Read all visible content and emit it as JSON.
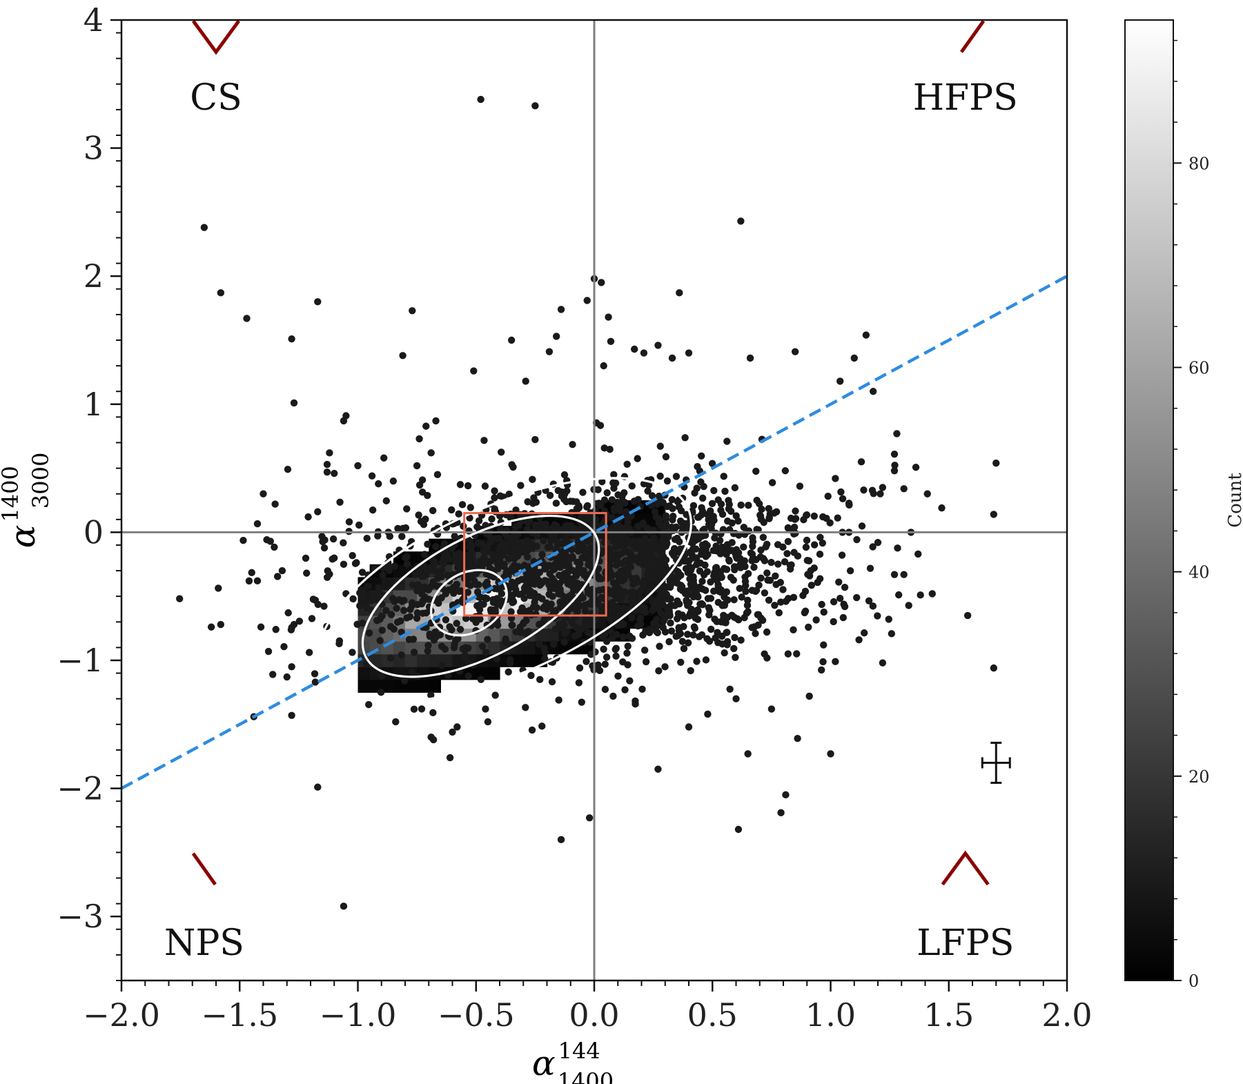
{
  "chart_data": {
    "type": "scatter",
    "x_axis": {
      "label_base": "α",
      "label_sub": "1400",
      "label_sup": "144",
      "range": [
        -2.0,
        2.0
      ],
      "ticks": [
        -2.0,
        -1.5,
        -1.0,
        -0.5,
        0.0,
        0.5,
        1.0,
        1.5,
        2.0
      ],
      "tick_labels": [
        "−2.0",
        "−1.5",
        "−1.0",
        "−0.5",
        "0.0",
        "0.5",
        "1.0",
        "1.5",
        "2.0"
      ]
    },
    "y_axis": {
      "label_base": "α",
      "label_sub": "3000",
      "label_sup": "1400",
      "range": [
        -3.5,
        4.0
      ],
      "ticks": [
        -3,
        -2,
        -1,
        0,
        1,
        2,
        3,
        4
      ],
      "tick_labels": [
        "−3",
        "−2",
        "−1",
        "0",
        "1",
        "2",
        "3",
        "4"
      ]
    },
    "colorbar": {
      "label": "Count",
      "range": [
        0,
        94
      ],
      "ticks": [
        0,
        20,
        40,
        60,
        80
      ],
      "tick_labels": [
        "0",
        "20",
        "40",
        "60",
        "80"
      ],
      "colormap": "greys_reversed"
    },
    "quadrant_labels": [
      {
        "text": "CS",
        "x": -1.6,
        "y": 3.3,
        "shape": "V",
        "sx": -1.6,
        "sy": 3.75
      },
      {
        "text": "HFPS",
        "x": 1.57,
        "y": 3.3,
        "shape": "rising",
        "sx": 1.6,
        "sy": 3.75
      },
      {
        "text": "NPS",
        "x": -1.65,
        "y": -3.3,
        "shape": "falling",
        "sx": -1.65,
        "sy": -2.75
      },
      {
        "text": "LFPS",
        "x": 1.57,
        "y": -3.3,
        "shape": "caret",
        "sx": 1.57,
        "sy": -2.75
      }
    ],
    "reference_lines": {
      "vertical_x": 0.0,
      "horizontal_y": 0.0
    },
    "fit_line": {
      "x": [
        -2.0,
        2.0
      ],
      "y": [
        -2.0,
        2.0
      ],
      "style": "dashed"
    },
    "box": {
      "x": [
        -0.55,
        0.05
      ],
      "y": [
        -0.65,
        0.15
      ]
    },
    "density": {
      "center": [
        -0.45,
        -0.55
      ],
      "sigma_major": 0.42,
      "sigma_minor": 0.19,
      "angle_deg": 32,
      "max_count": 94
    },
    "contours": [
      {
        "cx": -0.53,
        "cy": -0.55,
        "rx": 0.17,
        "ry": 0.16,
        "angle_deg": 30
      },
      {
        "cx": -0.48,
        "cy": -0.5,
        "rx": 0.55,
        "ry": 0.32,
        "angle_deg": 28
      },
      {
        "cx": -0.38,
        "cy": -0.45,
        "rx": 0.85,
        "ry": 0.45,
        "angle_deg": 24
      }
    ],
    "points": [
      [
        -0.48,
        3.38
      ],
      [
        -0.25,
        3.33
      ],
      [
        -1.65,
        2.38
      ],
      [
        -1.58,
        1.87
      ],
      [
        -1.47,
        1.67
      ],
      [
        -1.28,
        1.51
      ],
      [
        -1.17,
        1.8
      ],
      [
        -1.27,
        1.01
      ],
      [
        -0.81,
        1.38
      ],
      [
        -0.77,
        1.73
      ],
      [
        -0.35,
        1.5
      ],
      [
        -0.29,
        1.18
      ],
      [
        -0.51,
        1.26
      ],
      [
        -0.14,
        1.74
      ],
      [
        -0.19,
        1.41
      ],
      [
        -0.16,
        1.53
      ],
      [
        0.0,
        1.98
      ],
      [
        0.03,
        1.95
      ],
      [
        -0.03,
        1.81
      ],
      [
        0.06,
        1.68
      ],
      [
        0.36,
        1.87
      ],
      [
        0.62,
        2.43
      ],
      [
        0.07,
        1.49
      ],
      [
        0.27,
        1.46
      ],
      [
        0.17,
        1.43
      ],
      [
        0.33,
        1.36
      ],
      [
        0.04,
        1.3
      ],
      [
        0.21,
        1.4
      ],
      [
        0.4,
        1.4
      ],
      [
        0.66,
        1.36
      ],
      [
        0.85,
        1.41
      ],
      [
        1.15,
        1.54
      ],
      [
        1.1,
        1.36
      ],
      [
        1.04,
        1.18
      ],
      [
        1.18,
        1.1
      ],
      [
        1.28,
        0.77
      ],
      [
        1.27,
        0.61
      ],
      [
        1.27,
        0.48
      ],
      [
        1.13,
        0.55
      ],
      [
        1.31,
        0.34
      ],
      [
        1.22,
        0.35
      ],
      [
        1.21,
        0.3
      ],
      [
        1.14,
        0.33
      ],
      [
        1.02,
        0.42
      ],
      [
        1.7,
        0.54
      ],
      [
        1.47,
        0.19
      ],
      [
        1.69,
        0.14
      ],
      [
        1.34,
        0.0
      ],
      [
        1.2,
        -0.08
      ],
      [
        1.05,
        -0.0
      ],
      [
        -1.06,
        0.87
      ],
      [
        -1.05,
        0.91
      ],
      [
        -1.12,
        0.62
      ],
      [
        -1.13,
        0.53
      ],
      [
        -1.13,
        0.47
      ],
      [
        -1.1,
        0.46
      ],
      [
        -1.0,
        0.52
      ],
      [
        -0.89,
        0.58
      ],
      [
        -0.94,
        0.44
      ],
      [
        -0.74,
        0.73
      ],
      [
        -0.67,
        0.87
      ],
      [
        -0.69,
        0.62
      ],
      [
        -0.75,
        0.52
      ],
      [
        -0.85,
        0.4
      ],
      [
        -1.4,
        0.3
      ],
      [
        -1.35,
        0.22
      ],
      [
        -1.21,
        0.12
      ],
      [
        -1.17,
        0.16
      ],
      [
        -1.37,
        -0.07
      ],
      [
        -1.14,
        -0.06
      ],
      [
        -1.06,
        -0.25
      ],
      [
        -1.32,
        -0.3
      ],
      [
        -1.46,
        -0.38
      ],
      [
        -1.27,
        -0.72
      ],
      [
        -1.18,
        -0.53
      ],
      [
        -1.02,
        -0.52
      ],
      [
        -1.58,
        -0.72
      ],
      [
        -1.62,
        -0.74
      ],
      [
        -1.41,
        -0.74
      ],
      [
        -1.36,
        -1.11
      ],
      [
        -1.28,
        -1.05
      ],
      [
        -1.3,
        -1.13
      ],
      [
        -1.18,
        -1.17
      ],
      [
        -1.44,
        -1.44
      ],
      [
        -1.28,
        -1.43
      ],
      [
        -1.17,
        -1.99
      ],
      [
        -0.84,
        -1.48
      ],
      [
        -0.69,
        -1.6
      ],
      [
        -0.68,
        -1.62
      ],
      [
        -0.6,
        -1.56
      ],
      [
        -0.58,
        -1.52
      ],
      [
        -0.61,
        -1.76
      ],
      [
        -0.46,
        -1.38
      ],
      [
        -0.45,
        -1.48
      ],
      [
        -0.14,
        -2.4
      ],
      [
        -0.02,
        -2.23
      ],
      [
        0.27,
        -1.85
      ],
      [
        0.61,
        -2.32
      ],
      [
        0.79,
        -2.19
      ],
      [
        0.81,
        -2.05
      ],
      [
        -1.06,
        -2.92
      ],
      [
        0.65,
        -1.73
      ],
      [
        0.86,
        -1.61
      ],
      [
        1.0,
        -1.73
      ],
      [
        1.02,
        -1.01
      ],
      [
        1.12,
        -0.84
      ],
      [
        1.22,
        -1.02
      ],
      [
        1.06,
        -0.58
      ],
      [
        1.11,
        -0.51
      ],
      [
        1.06,
        -0.43
      ],
      [
        1.38,
        -0.49
      ],
      [
        1.43,
        -0.48
      ],
      [
        1.31,
        -0.33
      ],
      [
        1.27,
        -0.33
      ],
      [
        1.37,
        -0.17
      ],
      [
        1.58,
        -0.65
      ],
      [
        1.69,
        -1.06
      ],
      [
        0.4,
        -1.52
      ],
      [
        0.48,
        -1.42
      ],
      [
        0.6,
        -1.3
      ],
      [
        0.75,
        -1.38
      ],
      [
        0.91,
        -1.28
      ],
      [
        0.72,
        -0.95
      ],
      [
        0.82,
        -0.95
      ],
      [
        0.97,
        -0.88
      ],
      [
        0.13,
        -1.23
      ],
      [
        0.08,
        -1.28
      ],
      [
        0.15,
        -1.16
      ],
      [
        -0.15,
        -1.31
      ],
      [
        -0.23,
        -1.15
      ]
    ]
  }
}
